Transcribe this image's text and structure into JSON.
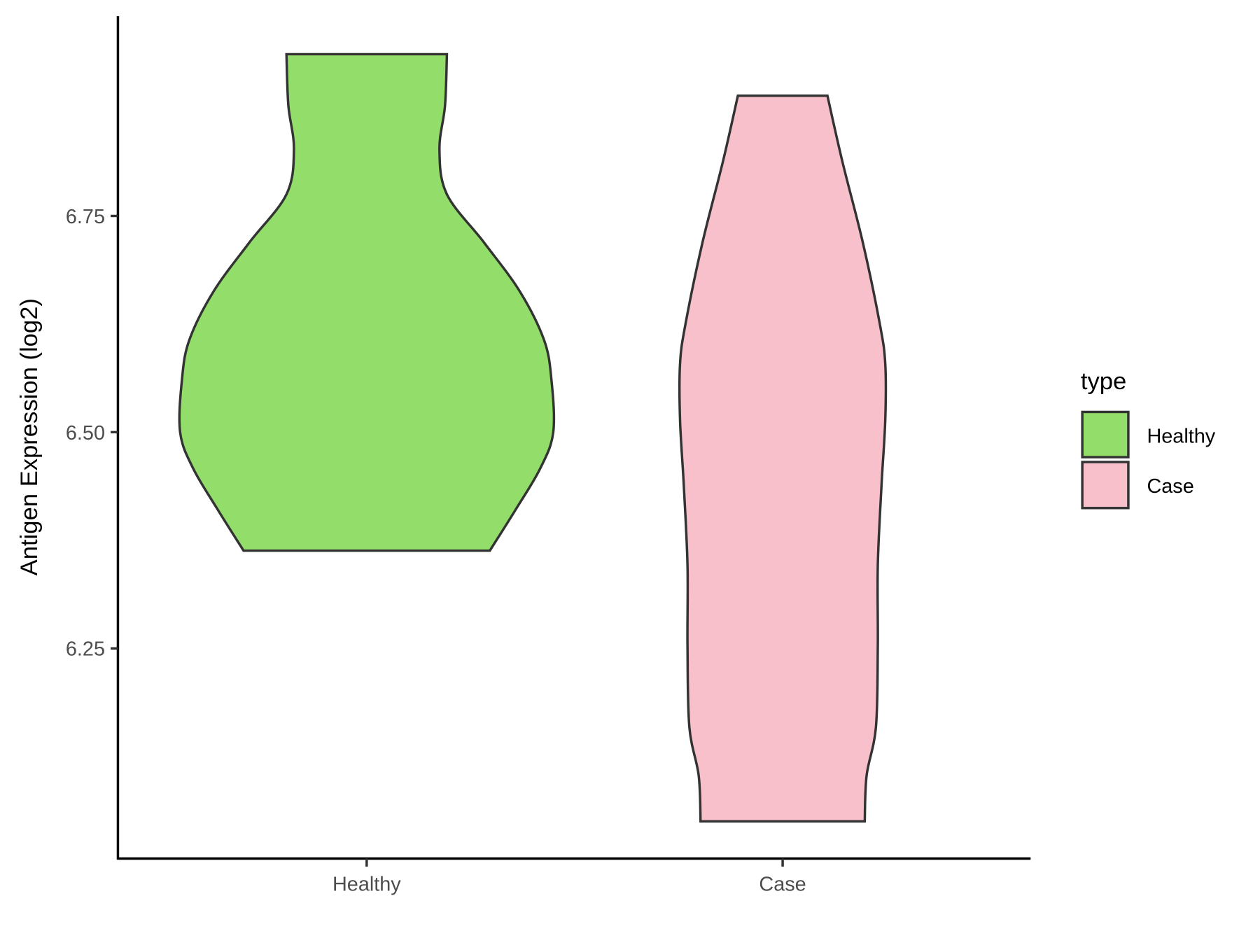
{
  "chart_data": {
    "type": "violin",
    "title": "",
    "xlabel": "",
    "ylabel": "Antigen Expression (log2)",
    "ylim": [
      6.007,
      6.981
    ],
    "yticks": [
      "6.25",
      "6.50",
      "6.75"
    ],
    "ytick_values": [
      6.25,
      6.5,
      6.75
    ],
    "categories": [
      "Healthy",
      "Case"
    ],
    "grid": false,
    "legend": {
      "title": "type",
      "placement": "right",
      "entries": [
        "Healthy",
        "Case"
      ]
    },
    "series": [
      {
        "name": "Healthy",
        "color": "#93DD6A",
        "min": 6.363,
        "max": 6.937,
        "density_profile": [
          [
            6.937,
            0.43
          ],
          [
            6.878,
            0.42
          ],
          [
            6.827,
            0.39
          ],
          [
            6.775,
            0.43
          ],
          [
            6.719,
            0.63
          ],
          [
            6.663,
            0.82
          ],
          [
            6.607,
            0.95
          ],
          [
            6.561,
            0.99
          ],
          [
            6.5,
            1.0
          ],
          [
            6.458,
            0.93
          ],
          [
            6.411,
            0.8
          ],
          [
            6.363,
            0.66
          ]
        ]
      },
      {
        "name": "Case",
        "color": "#F8C0CB",
        "min": 6.05,
        "max": 6.889,
        "density_profile": [
          [
            6.889,
            0.24
          ],
          [
            6.813,
            0.32
          ],
          [
            6.719,
            0.43
          ],
          [
            6.626,
            0.52
          ],
          [
            6.579,
            0.55
          ],
          [
            6.514,
            0.55
          ],
          [
            6.439,
            0.53
          ],
          [
            6.346,
            0.51
          ],
          [
            6.252,
            0.51
          ],
          [
            6.159,
            0.5
          ],
          [
            6.103,
            0.45
          ],
          [
            6.05,
            0.44
          ]
        ]
      }
    ]
  }
}
